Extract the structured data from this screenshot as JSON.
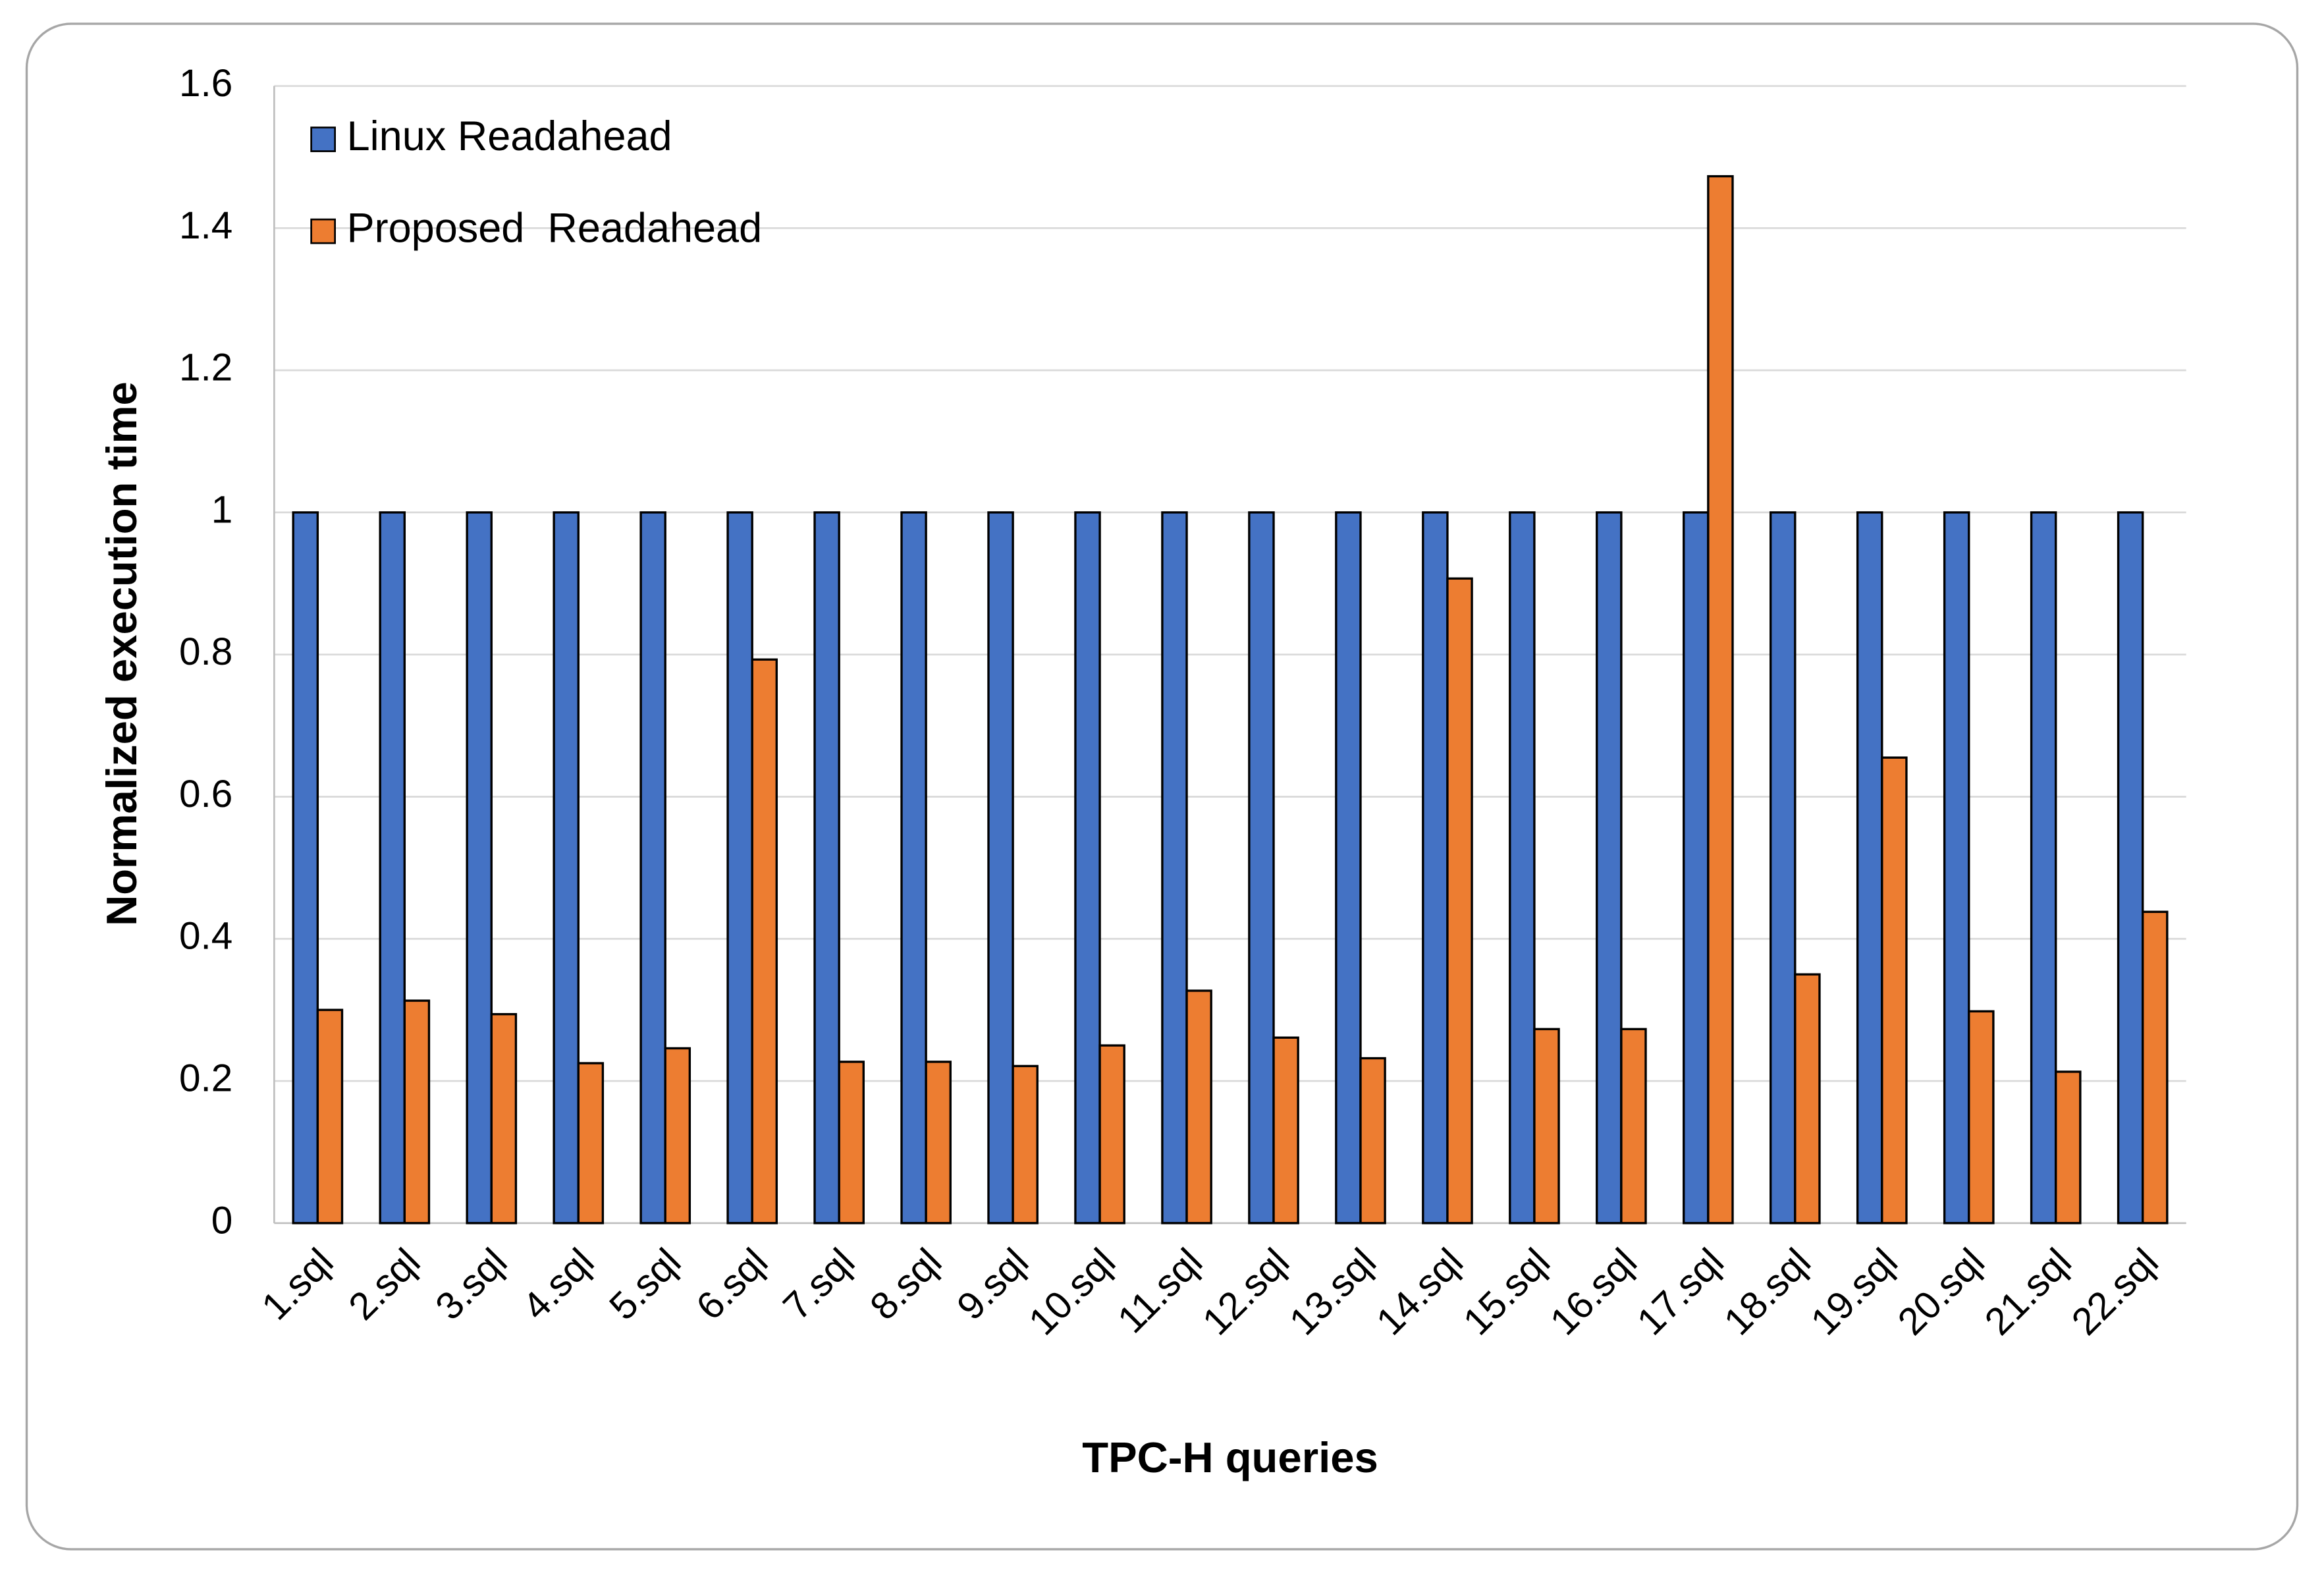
{
  "chart_data": {
    "type": "bar",
    "x_label": "TPC-H queries",
    "y_label": "Normalized execution time",
    "categories": [
      "1.sql",
      "2.sql",
      "3.sql",
      "4.sql",
      "5.sql",
      "6.sql",
      "7.sql",
      "8.sql",
      "9.sql",
      "10.sql",
      "11.sql",
      "12.sql",
      "13.sql",
      "14.sql",
      "15.sql",
      "16.sql",
      "17.sql",
      "18.sql",
      "19.sql",
      "20.sql",
      "21.sql",
      "22.sql"
    ],
    "series": [
      {
        "name": "Linux Readahead",
        "color": "#4472c4",
        "values": [
          1,
          1,
          1,
          1,
          1,
          1,
          1,
          1,
          1,
          1,
          1,
          1,
          1,
          1,
          1,
          1,
          1,
          1,
          1,
          1,
          1,
          1
        ]
      },
      {
        "name": "Proposed  Readahead",
        "color": "#ed7d31",
        "values": [
          0.3,
          0.313,
          0.294,
          0.225,
          0.246,
          0.793,
          0.227,
          0.227,
          0.221,
          0.25,
          0.327,
          0.261,
          0.232,
          0.907,
          0.273,
          0.273,
          1.473,
          0.35,
          0.655,
          0.298,
          0.213,
          0.438
        ]
      }
    ],
    "ylim": [
      0,
      1.6
    ],
    "yticks": [
      0,
      0.2,
      0.4,
      0.6,
      0.8,
      1,
      1.2,
      1.4,
      1.6
    ],
    "grid": true,
    "legend": "top-left"
  }
}
